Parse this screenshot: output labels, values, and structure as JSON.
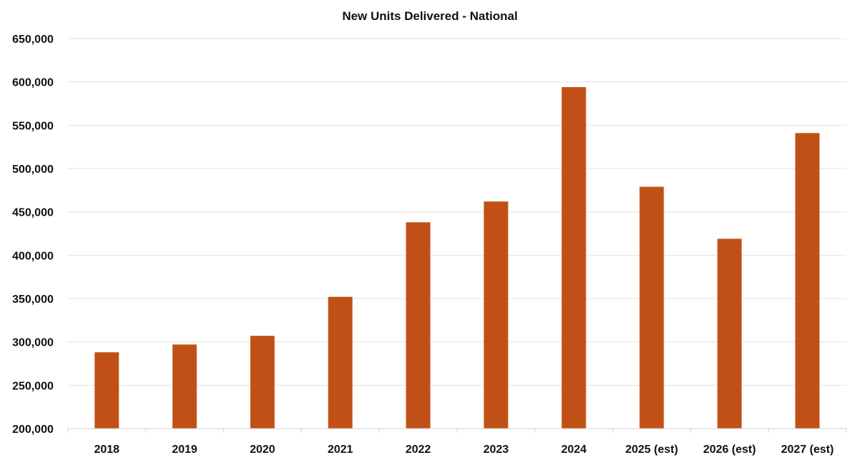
{
  "chart_data": {
    "type": "bar",
    "title": "New Units Delivered - National",
    "xlabel": "",
    "ylabel": "",
    "categories": [
      "2018",
      "2019",
      "2020",
      "2021",
      "2022",
      "2023",
      "2024",
      "2025 (est)",
      "2026 (est)",
      "2027 (est)"
    ],
    "values": [
      288000,
      297000,
      307000,
      352000,
      438000,
      462000,
      594000,
      479000,
      419000,
      541000
    ],
    "ylim": [
      200000,
      650000
    ],
    "yticks": [
      200000,
      250000,
      300000,
      350000,
      400000,
      450000,
      500000,
      550000,
      600000,
      650000
    ],
    "ytick_labels": [
      "200,000",
      "250,000",
      "300,000",
      "350,000",
      "400,000",
      "450,000",
      "500,000",
      "550,000",
      "600,000",
      "650,000"
    ],
    "grid": true,
    "legend": "none",
    "bar_color": "#C05016",
    "grid_color": "#E3E3E3"
  }
}
